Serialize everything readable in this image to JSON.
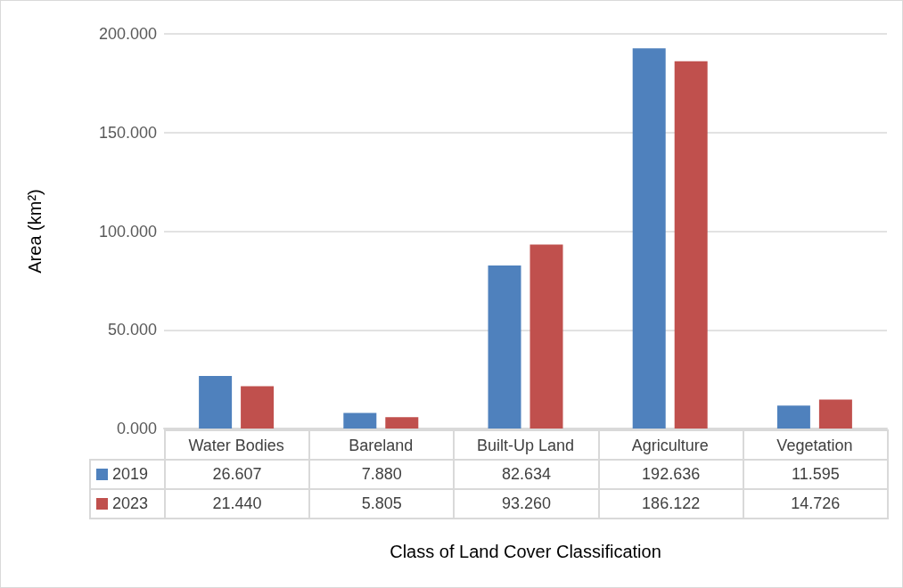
{
  "chart_data": {
    "type": "bar",
    "xlabel": "Class of Land Cover Classification",
    "ylabel": "Area (km²)",
    "categories": [
      "Water Bodies",
      "Bareland",
      "Built-Up Land",
      "Agriculture",
      "Vegetation"
    ],
    "series": [
      {
        "name": "2019",
        "color": "#4f81bd",
        "values": [
          26.607,
          7.88,
          82.634,
          192.636,
          11.595
        ],
        "value_labels": [
          "26.607",
          "7.880",
          "82.634",
          "192.636",
          "11.595"
        ]
      },
      {
        "name": "2023",
        "color": "#c0504d",
        "values": [
          21.44,
          5.805,
          93.26,
          186.122,
          14.726
        ],
        "value_labels": [
          "21.440",
          "5.805",
          "93.260",
          "186.122",
          "14.726"
        ]
      }
    ],
    "ylim": [
      0,
      200
    ],
    "yticks": [
      {
        "value": 0,
        "label": "0.000"
      },
      {
        "value": 50,
        "label": "50.000"
      },
      {
        "value": 100,
        "label": "100.000"
      },
      {
        "value": 150,
        "label": "150.000"
      },
      {
        "value": 200,
        "label": "200.000"
      }
    ],
    "grid": "y",
    "legend": "bottom"
  }
}
